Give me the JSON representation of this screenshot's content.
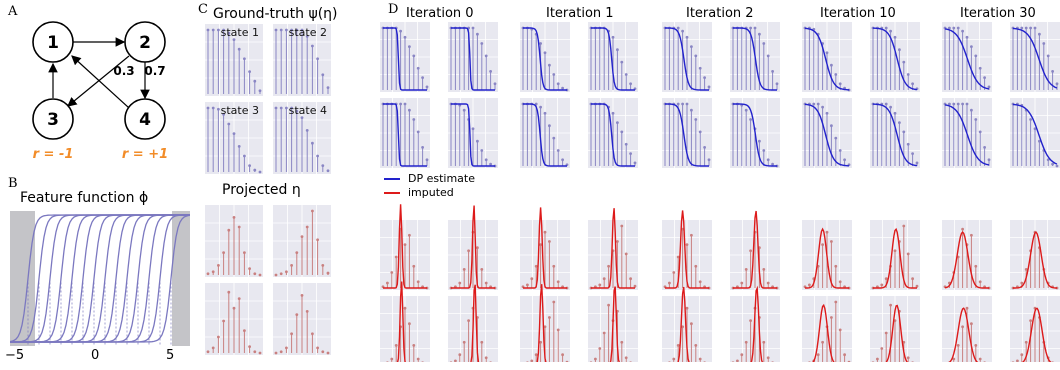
{
  "panels": {
    "a": "A",
    "b": "B",
    "c": "C",
    "d": "D"
  },
  "graph": {
    "nodes": [
      "1",
      "2",
      "3",
      "4"
    ],
    "edge_labels": [
      "0.3",
      "0.7"
    ],
    "rewards": [
      "r = -1",
      "r = +1"
    ],
    "reward_color": "#f28c28"
  },
  "feature": {
    "title": "Feature function ϕ",
    "ticks": [
      "−5",
      "0",
      "5"
    ],
    "line_color": "#7b78c0",
    "shade": "#c4c4c8"
  },
  "ground_truth": {
    "title": "Ground-truth ψ(η)",
    "states": [
      "state 1",
      "state 2",
      "state 3",
      "state 4"
    ],
    "color": "#8a86c4"
  },
  "projected": {
    "title": "Projected η",
    "color": "#c98080"
  },
  "iterations": [
    "Iteration 0",
    "Iteration 1",
    "Iteration 2",
    "Iteration 10",
    "Iteration 30"
  ],
  "legend": {
    "items": [
      {
        "label": "DP estimate",
        "color": "#2222cc"
      },
      {
        "label": "imputed",
        "color": "#dd1a1a"
      }
    ]
  },
  "colors": {
    "panel_bg": "#e8e8f0",
    "grid": "#ffffff"
  }
}
